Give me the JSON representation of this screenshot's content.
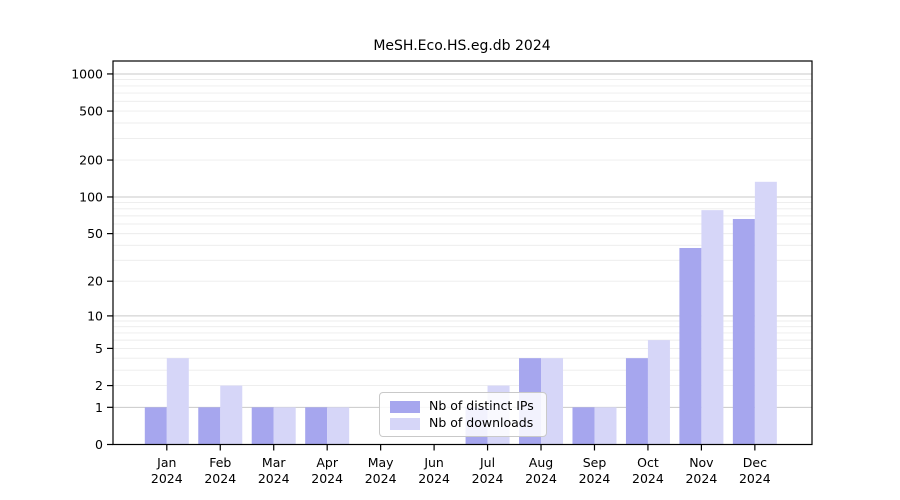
{
  "chart_data": {
    "type": "bar",
    "title": "MeSH.Eco.HS.eg.db 2024",
    "categories": [
      "Jan",
      "Feb",
      "Mar",
      "Apr",
      "May",
      "Jun",
      "Jul",
      "Aug",
      "Sep",
      "Oct",
      "Nov",
      "Dec"
    ],
    "category_year": "2024",
    "series": [
      {
        "name": "Nb of distinct IPs",
        "color": "#a6a6ee",
        "values": [
          1,
          1,
          1,
          1,
          0,
          0,
          1,
          4,
          1,
          4,
          38,
          66
        ]
      },
      {
        "name": "Nb of downloads",
        "color": "#d6d6f8",
        "values": [
          4,
          2,
          1,
          1,
          0,
          0,
          2,
          4,
          1,
          6,
          78,
          133
        ]
      }
    ],
    "yscale": "log10(1+v)",
    "yticks": [
      0,
      1,
      2,
      5,
      10,
      20,
      50,
      100,
      200,
      500,
      1000
    ],
    "ylim": [
      0,
      1270
    ],
    "xlabel": "",
    "ylabel": "",
    "grid": "horizontal major and minor",
    "legend_position": "lower center inside",
    "colors": {
      "axis": "#000000",
      "major_grid": "#c9c9c9",
      "minor_grid": "#ececec",
      "tick_label": "#000000"
    }
  }
}
